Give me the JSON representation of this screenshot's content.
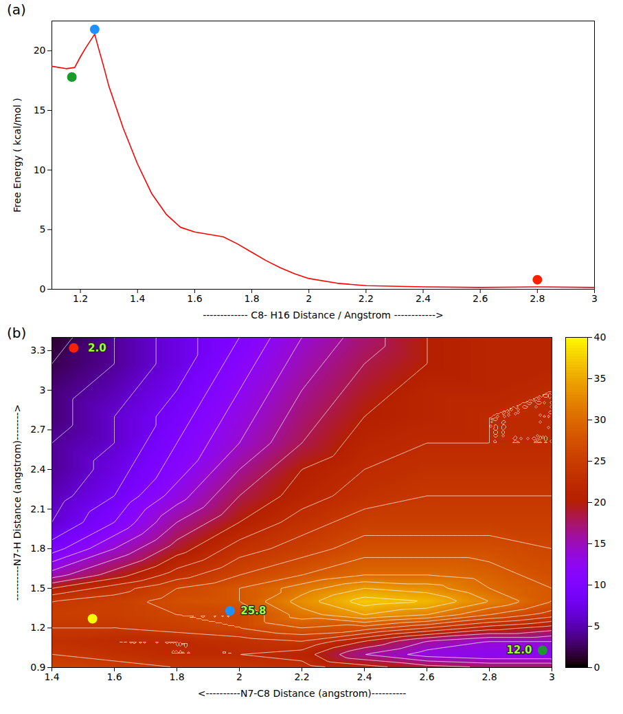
{
  "chart_data": [
    {
      "type": "line",
      "title": "(a)",
      "x_label": "------------- C8- H16 Distance / Angstrom ------------>",
      "y_label": "Free Energy ( kcal/mol )",
      "x": [
        1.1,
        1.15,
        1.18,
        1.2,
        1.22,
        1.25,
        1.26,
        1.28,
        1.3,
        1.35,
        1.4,
        1.45,
        1.5,
        1.55,
        1.6,
        1.65,
        1.7,
        1.75,
        1.8,
        1.85,
        1.9,
        1.95,
        2.0,
        2.1,
        2.2,
        2.4,
        2.6,
        2.8,
        3.0
      ],
      "values": [
        18.7,
        18.5,
        18.6,
        19.5,
        20.3,
        21.4,
        20.5,
        18.8,
        17.0,
        13.5,
        10.5,
        8.0,
        6.3,
        5.2,
        4.8,
        4.6,
        4.4,
        3.8,
        3.1,
        2.4,
        1.8,
        1.3,
        0.9,
        0.5,
        0.3,
        0.2,
        0.15,
        0.2,
        0.15
      ],
      "color": "#ff0000",
      "markers": [
        {
          "x": 1.25,
          "y": 21.8,
          "color": "#1e90ff"
        },
        {
          "x": 1.17,
          "y": 17.8,
          "color": "#1a9a2a"
        },
        {
          "x": 2.8,
          "y": 0.8,
          "color": "#ff2000"
        }
      ],
      "xlim": [
        1.1,
        3.0
      ],
      "xticks": [
        1.2,
        1.4,
        1.6,
        1.8,
        2,
        2.2,
        2.4,
        2.6,
        2.8,
        3
      ],
      "ylim": [
        0,
        22.5
      ],
      "yticks": [
        0,
        5,
        10,
        15,
        20
      ],
      "grid": false
    },
    {
      "type": "heatmap",
      "title": "(b)",
      "x_label": "<----------N7-C8 Distance (angstrom)----------",
      "y_label": "----------N7-H Distance (angstrom)-------->",
      "x": [
        1.4,
        1.6,
        1.8,
        2.0,
        2.2,
        2.4,
        2.6,
        2.8,
        3.0
      ],
      "y": [
        0.9,
        1.0,
        1.1,
        1.2,
        1.3,
        1.4,
        1.5,
        1.6,
        1.8,
        2.0,
        2.2,
        2.4,
        2.6,
        2.8,
        3.0,
        3.2,
        3.4
      ],
      "z": [
        [
          26,
          25,
          24,
          24,
          23,
          21,
          19,
          18,
          18
        ],
        [
          24,
          23,
          22,
          22,
          21,
          16,
          13,
          12,
          12
        ],
        [
          23,
          22,
          22,
          23,
          24,
          20,
          16,
          14,
          14
        ],
        [
          24,
          24,
          25,
          26,
          28,
          27,
          24,
          21,
          19
        ],
        [
          25,
          25,
          26,
          26,
          31,
          34,
          32,
          28,
          25
        ],
        [
          24,
          25,
          27,
          28,
          33,
          37,
          36,
          32,
          28
        ],
        [
          20,
          23,
          26,
          28,
          31,
          34,
          33,
          30,
          28
        ],
        [
          15,
          19,
          23,
          26,
          28,
          30,
          30,
          29,
          27
        ],
        [
          9,
          14,
          19,
          23,
          25,
          27,
          27,
          27,
          26
        ],
        [
          6,
          10,
          16,
          20,
          23,
          25,
          25,
          25,
          25
        ],
        [
          5,
          8,
          13,
          18,
          21,
          23,
          24,
          24,
          24
        ],
        [
          4,
          7,
          11,
          16,
          20,
          22,
          23,
          23,
          23
        ],
        [
          4,
          6,
          10,
          14,
          18,
          21,
          22,
          22,
          22
        ],
        [
          3,
          6,
          9,
          13,
          17,
          20,
          21,
          22,
          22
        ],
        [
          3,
          5,
          8,
          12,
          16,
          19,
          21,
          21,
          22
        ],
        [
          2,
          4,
          7,
          11,
          15,
          18,
          20,
          21,
          21
        ],
        [
          1,
          4,
          7,
          10,
          14,
          17,
          20,
          21,
          21
        ]
      ],
      "colorbar": {
        "lim": [
          0,
          40
        ],
        "ticks": [
          0,
          5,
          10,
          15,
          20,
          25,
          30,
          35,
          40
        ]
      },
      "markers": [
        {
          "x": 1.47,
          "y": 3.32,
          "color": "#ff2000",
          "label": "2.0"
        },
        {
          "x": 1.53,
          "y": 1.27,
          "color": "#ffff00"
        },
        {
          "x": 1.97,
          "y": 1.33,
          "color": "#1e90ff",
          "label": "25.8"
        },
        {
          "x": 2.97,
          "y": 1.03,
          "color": "#1a9a2a",
          "label": "12.0"
        }
      ],
      "xlim": [
        1.4,
        3.0
      ],
      "xticks": [
        1.4,
        1.6,
        1.8,
        2,
        2.2,
        2.4,
        2.6,
        2.8,
        3
      ],
      "ylim": [
        0.9,
        3.4
      ],
      "yticks": [
        0.9,
        1.2,
        1.5,
        1.8,
        2.1,
        2.4,
        2.7,
        3,
        3.3
      ]
    }
  ]
}
